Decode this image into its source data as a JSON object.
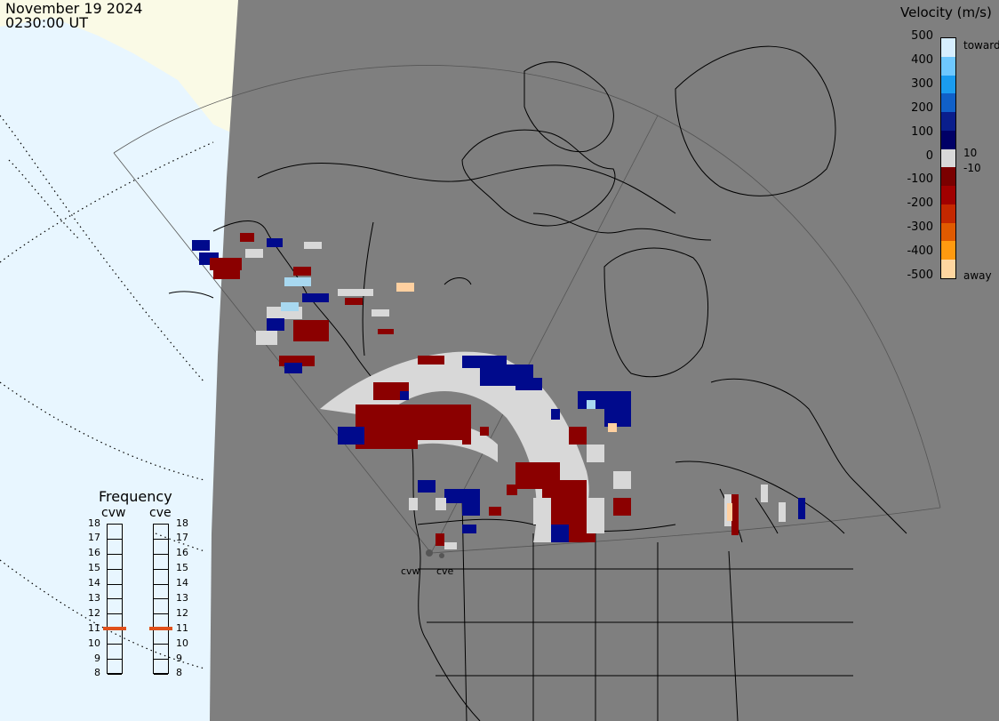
{
  "header": {
    "date": "November 19 2024",
    "time": "0230:00 UT"
  },
  "velocity_scale": {
    "title": "Velocity (m/s)",
    "ticks": [
      "500",
      "400",
      "300",
      "200",
      "100",
      "0",
      "-100",
      "-200",
      "-300",
      "-400",
      "-500"
    ],
    "near_zero_labels": [
      "10",
      "-10"
    ],
    "toward_label": "toward",
    "away_label": "away",
    "colors": [
      "#d6eeff",
      "#6ec8ff",
      "#1a9cf0",
      "#1060c8",
      "#0a1e8c",
      "#000066",
      "#d8d8d8",
      "#7a0000",
      "#a00000",
      "#c42800",
      "#e05a00",
      "#ff9a10",
      "#ffd6a0"
    ]
  },
  "frequency_panel": {
    "title": "Frequency",
    "radars": [
      {
        "name": "cvw",
        "freq_mhz": 11
      },
      {
        "name": "cve",
        "freq_mhz": 11
      }
    ],
    "ticks": [
      "18",
      "17",
      "16",
      "15",
      "14",
      "13",
      "12",
      "11",
      "10",
      "9",
      "8"
    ],
    "range": [
      8,
      18
    ]
  },
  "sites": {
    "cvw": "cvw",
    "cve": "cve"
  },
  "map": {
    "land_color": "#7f7f7f",
    "ocean_color": "#e8f6ff",
    "ice_color": "#fafae6",
    "outline_color": "#000000"
  }
}
